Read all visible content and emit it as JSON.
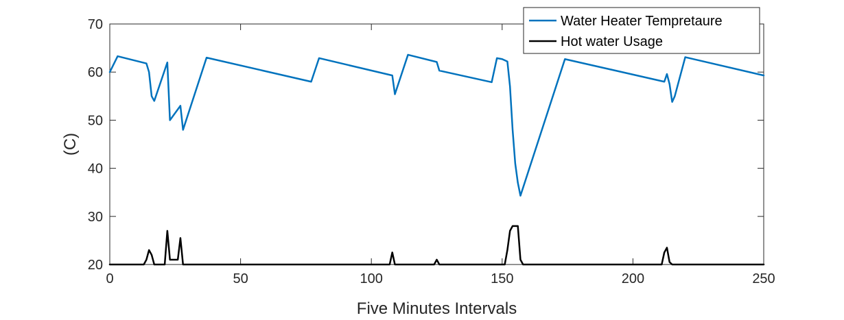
{
  "chart_data": {
    "type": "line",
    "title": "",
    "xlabel": "Five Minutes Intervals",
    "ylabel": "(C)",
    "xlim": [
      0,
      250
    ],
    "ylim": [
      20,
      70
    ],
    "xticks": [
      0,
      50,
      100,
      150,
      200,
      250
    ],
    "yticks": [
      20,
      30,
      40,
      50,
      60,
      70
    ],
    "grid": false,
    "legend_position": "top-right",
    "series": [
      {
        "name": "Water Heater Tempretaure",
        "color": "#0072BD",
        "points": [
          [
            0,
            60
          ],
          [
            3,
            63.3
          ],
          [
            14,
            61.8
          ],
          [
            15,
            60
          ],
          [
            16,
            55
          ],
          [
            17,
            54
          ],
          [
            22,
            62
          ],
          [
            23,
            50
          ],
          [
            27,
            53
          ],
          [
            28,
            48
          ],
          [
            37,
            63
          ],
          [
            77,
            58
          ],
          [
            80,
            62.9
          ],
          [
            108,
            59.3
          ],
          [
            109,
            55.4
          ],
          [
            114,
            63.6
          ],
          [
            125,
            62.1
          ],
          [
            126,
            60.3
          ],
          [
            146,
            57.9
          ],
          [
            148,
            62.9
          ],
          [
            150,
            62.7
          ],
          [
            152,
            62.2
          ],
          [
            153,
            57
          ],
          [
            154,
            48
          ],
          [
            155,
            41
          ],
          [
            156,
            37
          ],
          [
            157,
            34.3
          ],
          [
            174,
            62.7
          ],
          [
            212,
            58
          ],
          [
            213,
            59.6
          ],
          [
            214,
            57.5
          ],
          [
            215,
            53.8
          ],
          [
            216,
            55
          ],
          [
            220,
            63.1
          ],
          [
            250,
            59.3
          ]
        ]
      },
      {
        "name": "Hot water Usage",
        "color": "#000000",
        "points": [
          [
            0,
            20
          ],
          [
            13,
            20
          ],
          [
            14,
            21
          ],
          [
            15,
            23
          ],
          [
            16,
            22
          ],
          [
            17,
            20
          ],
          [
            21,
            20
          ],
          [
            22,
            27
          ],
          [
            23,
            21
          ],
          [
            26,
            21
          ],
          [
            27,
            25.5
          ],
          [
            28,
            20
          ],
          [
            107,
            20
          ],
          [
            108,
            22.5
          ],
          [
            109,
            20
          ],
          [
            124,
            20
          ],
          [
            125,
            21
          ],
          [
            126,
            20
          ],
          [
            151,
            20
          ],
          [
            152,
            23
          ],
          [
            153,
            27
          ],
          [
            154,
            28
          ],
          [
            156,
            28
          ],
          [
            157,
            21
          ],
          [
            158,
            20
          ],
          [
            211,
            20
          ],
          [
            212,
            22.5
          ],
          [
            213,
            23.5
          ],
          [
            214,
            20.5
          ],
          [
            215,
            20
          ],
          [
            250,
            20
          ]
        ]
      }
    ]
  }
}
